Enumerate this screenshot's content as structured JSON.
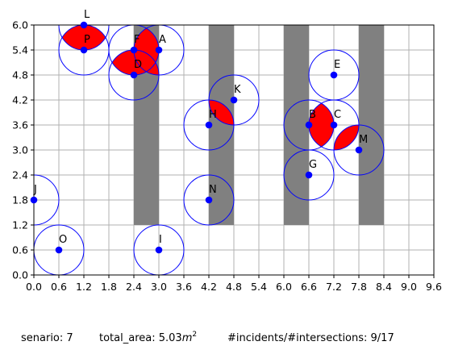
{
  "chart_data": {
    "type": "scatter",
    "xlim": [
      0,
      9.6
    ],
    "ylim": [
      0,
      6.0
    ],
    "xticks": [
      "0.0",
      "0.6",
      "1.2",
      "1.8",
      "2.4",
      "3.0",
      "3.6",
      "4.2",
      "4.8",
      "5.4",
      "6.0",
      "6.6",
      "7.2",
      "7.8",
      "8.4",
      "9.0",
      "9.6"
    ],
    "yticks": [
      "0.0",
      "0.6",
      "1.2",
      "1.8",
      "2.4",
      "3.0",
      "3.6",
      "4.2",
      "4.8",
      "5.4",
      "6.0"
    ],
    "grid": true,
    "circle_radius": 0.6,
    "colors": {
      "point": "#0000ff",
      "circle": "#0000ff",
      "intersection": "#ff0000",
      "obstacle": "#808080",
      "grid": "#b0b0b0"
    },
    "obstacles": [
      {
        "x0": 2.4,
        "x1": 3.0,
        "y0": 1.2,
        "y1": 6.0
      },
      {
        "x0": 4.2,
        "x1": 4.8,
        "y0": 1.2,
        "y1": 6.0
      },
      {
        "x0": 6.0,
        "x1": 6.6,
        "y0": 1.2,
        "y1": 6.0
      },
      {
        "x0": 7.8,
        "x1": 8.4,
        "y0": 1.2,
        "y1": 6.0
      }
    ],
    "points": [
      {
        "label": "L",
        "x": 1.2,
        "y": 6.0
      },
      {
        "label": "P",
        "x": 1.2,
        "y": 5.4
      },
      {
        "label": "F",
        "x": 2.4,
        "y": 5.4
      },
      {
        "label": "A",
        "x": 3.0,
        "y": 5.4
      },
      {
        "label": "D",
        "x": 2.4,
        "y": 4.8
      },
      {
        "label": "E",
        "x": 7.2,
        "y": 4.8
      },
      {
        "label": "K",
        "x": 4.8,
        "y": 4.2
      },
      {
        "label": "H",
        "x": 4.2,
        "y": 3.6
      },
      {
        "label": "B",
        "x": 6.6,
        "y": 3.6
      },
      {
        "label": "C",
        "x": 7.2,
        "y": 3.6
      },
      {
        "label": "M",
        "x": 7.8,
        "y": 3.0
      },
      {
        "label": "G",
        "x": 6.6,
        "y": 2.4
      },
      {
        "label": "J",
        "x": 0.0,
        "y": 1.8
      },
      {
        "label": "N",
        "x": 4.2,
        "y": 1.8
      },
      {
        "label": "O",
        "x": 0.6,
        "y": 0.6
      },
      {
        "label": "I",
        "x": 3.0,
        "y": 0.6
      }
    ],
    "caption": {
      "scenario": "senario: 7",
      "area_prefix": "total_area: 5.03",
      "area_unit": "m",
      "area_exp": "2",
      "incidents": "#incidents/#intersections: 9/17"
    }
  }
}
